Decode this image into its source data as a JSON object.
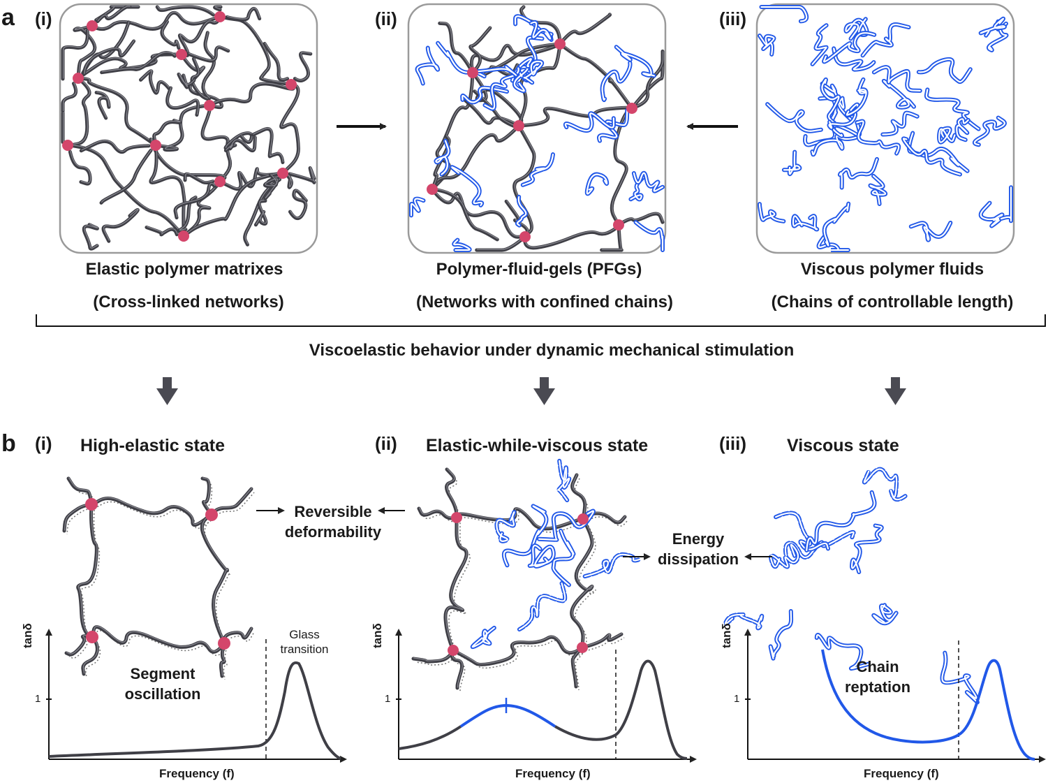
{
  "panel_a": {
    "letter": "a",
    "items": [
      {
        "roman": "(i)",
        "title": "Elastic polymer matrixes",
        "subtitle": "(Cross-linked networks)"
      },
      {
        "roman": "(ii)",
        "title": "Polymer-fluid-gels (PFGs)",
        "subtitle": "(Networks with confined chains)"
      },
      {
        "roman": "(iii)",
        "title": "Viscous polymer fluids",
        "subtitle": "(Chains of controllable length)"
      }
    ],
    "bracket_label": "Viscoelastic behavior under dynamic mechanical stimulation"
  },
  "panel_b": {
    "letter": "b",
    "items": [
      {
        "roman": "(i)",
        "state": "High-elastic state"
      },
      {
        "roman": "(ii)",
        "state": "Elastic-while-viscous state"
      },
      {
        "roman": "(iii)",
        "state": "Viscous state"
      }
    ],
    "notes": {
      "reversible": "Reversible deformability",
      "energy": "Energy dissipation",
      "segment": "Segment oscillation",
      "glass": "Glass transition",
      "reptation": "Chain reptation"
    },
    "axes": {
      "ylabel": "tanδ",
      "xlabel": "Frequency (f)",
      "tick": "1"
    }
  },
  "colors": {
    "network": "#3f3f46",
    "crosslink": "#d4466b",
    "fluid": "#2158e8",
    "box": "#9a9a9a",
    "arrow": "#4a4a52"
  }
}
